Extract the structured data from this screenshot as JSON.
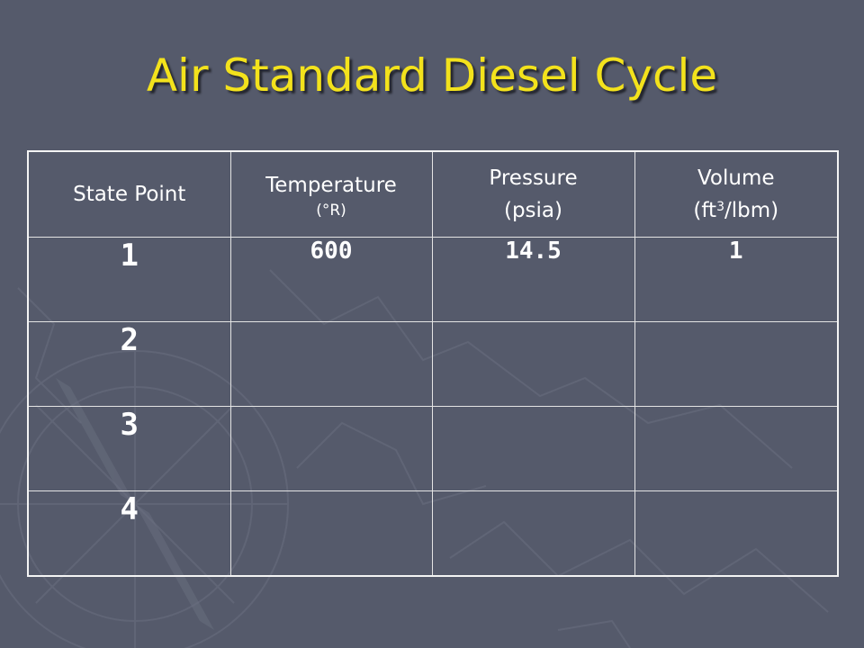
{
  "title": "Air Standard Diesel Cycle",
  "table": {
    "headers": {
      "state_point": "State Point",
      "temperature": "Temperature",
      "temperature_unit": "(°R)",
      "pressure": "Pressure",
      "pressure_unit": "(psia)",
      "volume_pre": "(ft",
      "volume_sup": "3",
      "volume_post": "/lbm)",
      "volume": "Volume"
    },
    "rows": [
      {
        "state": "1",
        "temperature": "600",
        "pressure": "14.5",
        "volume": "1"
      },
      {
        "state": "2",
        "temperature": "",
        "pressure": "",
        "volume": ""
      },
      {
        "state": "3",
        "temperature": "",
        "pressure": "",
        "volume": ""
      },
      {
        "state": "4",
        "temperature": "",
        "pressure": "",
        "volume": ""
      }
    ]
  },
  "colors": {
    "background": "#555a6b",
    "title": "#f3e21c",
    "text": "#ffffff"
  }
}
